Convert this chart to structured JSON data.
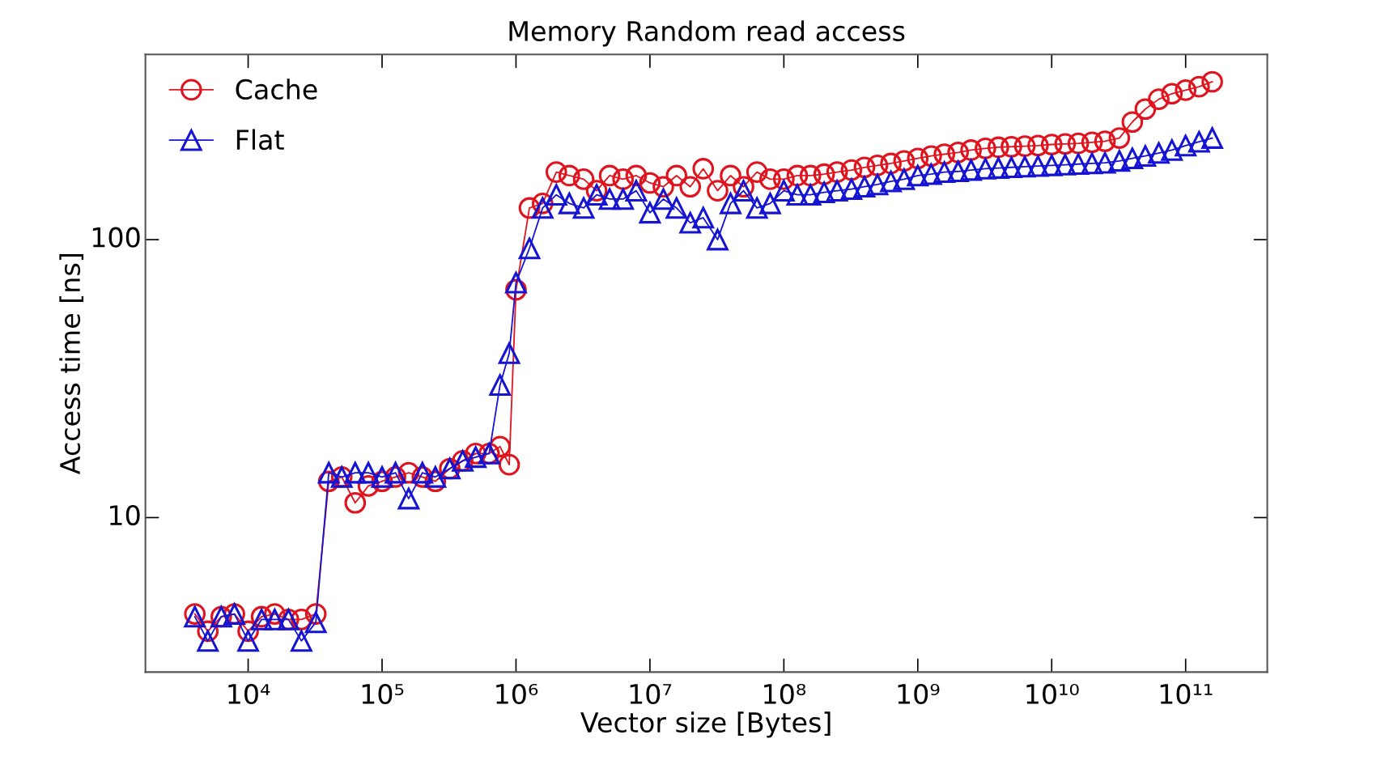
{
  "chart_data": {
    "type": "line",
    "title": "Memory Random read access",
    "xlabel": "Vector size [Bytes]",
    "ylabel": "Access time [ns]",
    "log": "xy",
    "grid": false,
    "legend": "top left",
    "xlim": [
      1710,
      407000000000
    ],
    "ylim": [
      2.78,
      464
    ],
    "xticks": [
      {
        "value": 10000,
        "label": "10⁴"
      },
      {
        "value": 100000,
        "label": "10⁵"
      },
      {
        "value": 1000000,
        "label": "10⁶"
      },
      {
        "value": 10000000,
        "label": "10⁷"
      },
      {
        "value": 100000000,
        "label": "10⁸"
      },
      {
        "value": 1000000000,
        "label": "10⁹"
      },
      {
        "value": 10000000000,
        "label": "10¹⁰"
      },
      {
        "value": 100000000000,
        "label": "10¹¹"
      }
    ],
    "yticks": [
      10,
      100
    ],
    "x": [
      4000,
      5000,
      6300,
      7900,
      10000,
      12600,
      15800,
      20000,
      25000,
      32000,
      40000,
      50000,
      63000,
      79000,
      100000,
      126000,
      158000,
      200000,
      250000,
      320000,
      400000,
      500000,
      630000,
      760000,
      890000,
      1000000,
      1260000,
      1580000,
      2000000,
      2500000,
      3200000,
      4000000,
      5000000,
      6300000,
      7900000,
      10000000,
      12600000,
      15800000,
      20000000,
      25000000,
      32000000,
      40000000,
      50000000,
      63000000,
      79000000,
      100000000,
      126000000,
      158000000,
      200000000,
      250000000,
      320000000,
      400000000,
      500000000,
      630000000,
      790000000,
      1000000000,
      1260000000,
      1580000000,
      2000000000,
      2500000000,
      3200000000,
      4000000000,
      5000000000,
      6300000000,
      7900000000,
      10000000000,
      12600000000,
      15800000000,
      20000000000,
      25000000000,
      32000000000,
      40000000000,
      50000000000,
      63000000000,
      79000000000,
      100000000000,
      126000000000,
      158000000000
    ],
    "series": [
      {
        "name": "Cache",
        "color": "#e0141e",
        "marker": "circle",
        "values": [
          4.5,
          3.9,
          4.4,
          4.5,
          3.9,
          4.4,
          4.5,
          4.3,
          4.3,
          4.5,
          13.5,
          14,
          11.3,
          13,
          13.5,
          14,
          14.5,
          14,
          13.5,
          15,
          16,
          17,
          17,
          18,
          15.5,
          66,
          130,
          135,
          175,
          170,
          165,
          150,
          170,
          165,
          170,
          160,
          155,
          170,
          155,
          180,
          150,
          170,
          155,
          175,
          165,
          165,
          170,
          170,
          172,
          175,
          178,
          182,
          185,
          188,
          192,
          196,
          200,
          203,
          206,
          210,
          213,
          215,
          216,
          217,
          218,
          220,
          221,
          222,
          224,
          226,
          232,
          265,
          295,
          320,
          335,
          345,
          355,
          370
        ]
      },
      {
        "name": "Flat",
        "color": "#1414d2",
        "marker": "triangle",
        "values": [
          4.4,
          3.6,
          4.4,
          4.5,
          3.6,
          4.3,
          4.3,
          4.3,
          3.6,
          4.2,
          14.5,
          14,
          14.5,
          14.5,
          14,
          14.5,
          11.7,
          14.5,
          14,
          15,
          16,
          16.5,
          17,
          30,
          39,
          70,
          93,
          130,
          145,
          135,
          130,
          145,
          140,
          140,
          150,
          125,
          140,
          130,
          115,
          120,
          100,
          135,
          150,
          130,
          135,
          150,
          145,
          145,
          148,
          150,
          152,
          155,
          158,
          162,
          165,
          170,
          172,
          175,
          176,
          178,
          180,
          181,
          182,
          183,
          184,
          185,
          186,
          187,
          188,
          189,
          192,
          196,
          200,
          205,
          210,
          218,
          225,
          232
        ]
      }
    ]
  }
}
